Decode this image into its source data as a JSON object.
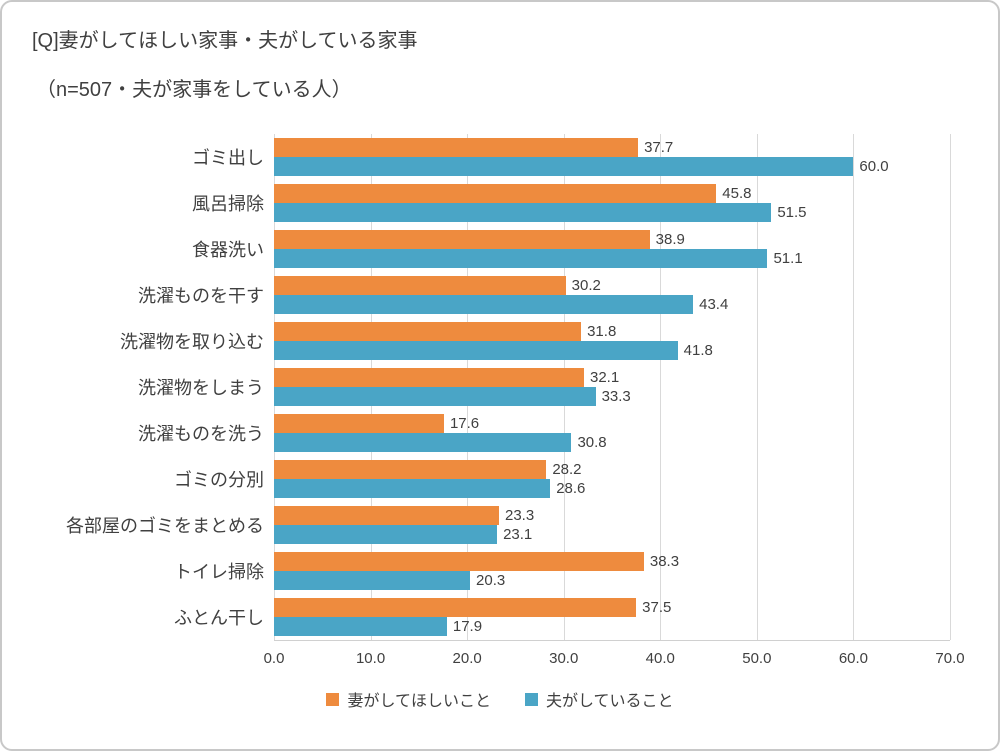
{
  "title": "[Q]妻がしてほしい家事・夫がしている家事",
  "subtitle": "（n=507・夫が家事をしている人）",
  "chart_data": {
    "type": "bar",
    "orientation": "horizontal",
    "title": "[Q]妻がしてほしい家事・夫がしている家事",
    "subtitle": "（n=507・夫が家事をしている人）",
    "categories": [
      "ゴミ出し",
      "風呂掃除",
      "食器洗い",
      "洗濯ものを干す",
      "洗濯物を取り込む",
      "洗濯物をしまう",
      "洗濯ものを洗う",
      "ゴミの分別",
      "各部屋のゴミをまとめる",
      "トイレ掃除",
      "ふとん干し"
    ],
    "series": [
      {
        "name": "妻がしてほしいこと",
        "color": "#ee8b3e",
        "values": [
          37.7,
          45.8,
          38.9,
          30.2,
          31.8,
          32.1,
          17.6,
          28.2,
          23.3,
          38.3,
          37.5
        ]
      },
      {
        "name": "夫がしていること",
        "color": "#4aa5c6",
        "values": [
          60.0,
          51.5,
          51.1,
          43.4,
          41.8,
          33.3,
          30.8,
          28.6,
          23.1,
          20.3,
          17.9
        ]
      }
    ],
    "xlim": [
      0,
      70
    ],
    "xticks": [
      0,
      10,
      20,
      30,
      40,
      50,
      60,
      70
    ],
    "grid": true,
    "gridline_color": "#d9d9d9",
    "legend_position": "bottom",
    "value_labels": true
  }
}
